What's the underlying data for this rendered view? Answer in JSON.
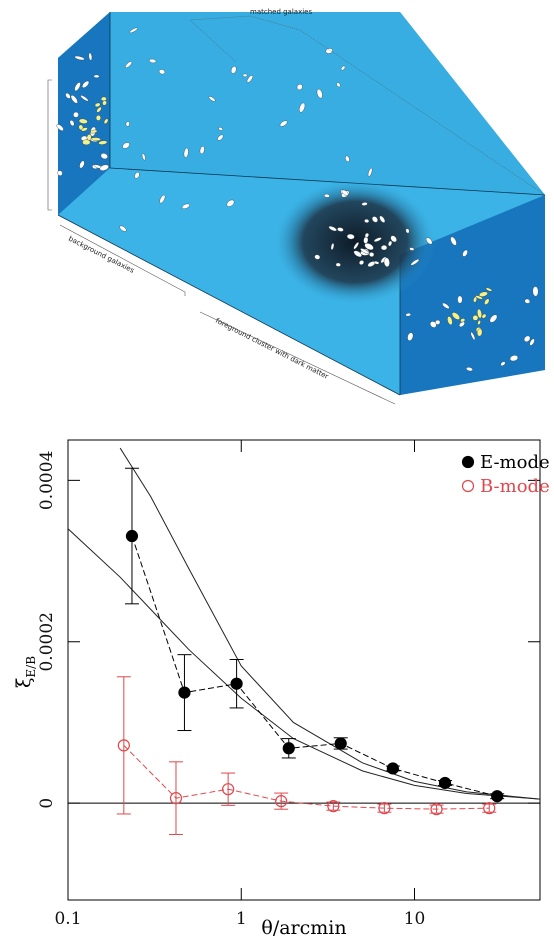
{
  "diagram": {
    "labels": {
      "matched": "matched galaxies",
      "background": "background galaxies",
      "cluster": "foreground cluster with dark matter"
    }
  },
  "chart_data": {
    "type": "scatter",
    "xlabel": "θ/arcmin",
    "ylabel_symbol": "ξ",
    "ylabel_subscript": "E/B",
    "xscale": "log",
    "xlim": [
      0.1,
      53
    ],
    "xticks": [
      0.1,
      1,
      10
    ],
    "ylim": [
      -0.00012,
      0.00045
    ],
    "yticks": [
      0,
      0.0002,
      0.0004
    ],
    "legend": "upper right",
    "series": [
      {
        "name": "E-mode",
        "color": "#000000",
        "marker": "filled",
        "x": [
          0.234,
          0.47,
          0.94,
          1.88,
          3.75,
          7.5,
          15,
          30
        ],
        "values": [
          0.000331,
          0.000137,
          0.000148,
          6.8e-05,
          7.4e-05,
          4.3e-05,
          2.5e-05,
          8.6e-06
        ],
        "errors": [
          8.4e-05,
          4.7e-05,
          3e-05,
          1.2e-05,
          7e-06,
          3e-06,
          3e-06,
          3e-06
        ]
      },
      {
        "name": "B-mode",
        "color": "#e0474c",
        "marker": "open",
        "x": [
          0.21,
          0.42,
          0.84,
          1.7,
          3.4,
          6.7,
          13.4,
          27
        ],
        "values": [
          7.16e-05,
          6.2e-06,
          1.73e-05,
          2.5e-06,
          -3.7e-06,
          -6.2e-06,
          -7.4e-06,
          -6.2e-06
        ],
        "errors": [
          8.5e-05,
          4.5e-05,
          2e-05,
          1e-05,
          5e-06,
          5e-06,
          5e-06,
          5e-06
        ]
      }
    ],
    "models": [
      {
        "x": [
          0.2,
          0.3,
          0.5,
          1,
          2,
          5,
          10,
          20,
          53
        ],
        "values": [
          0.00044,
          0.00038,
          0.00029,
          0.00017,
          0.0001,
          5e-05,
          2.7e-05,
          1.4e-05,
          5e-06
        ]
      },
      {
        "x": [
          0.1,
          0.2,
          0.5,
          1,
          2,
          5,
          10,
          20,
          53
        ],
        "values": [
          0.00034,
          0.00028,
          0.00019,
          0.00013,
          8e-05,
          4e-05,
          2.2e-05,
          1.2e-05,
          5e-06
        ]
      }
    ]
  }
}
